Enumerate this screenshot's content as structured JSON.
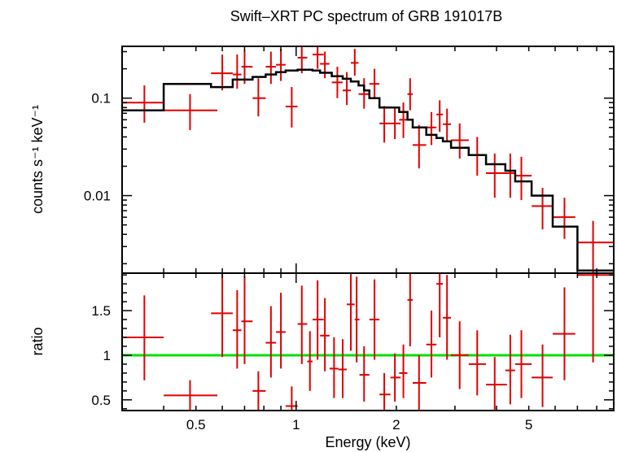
{
  "chart_data": {
    "title": "Swift–XRT PC spectrum of GRB 191017B",
    "xlabel": "Energy (keV)",
    "type": "scatter",
    "x_scale": "log",
    "xlim": [
      0.3,
      9.0
    ],
    "x_tick_labels": [
      "0.5",
      "1",
      "2",
      "5"
    ],
    "colors": {
      "data": "#e00000",
      "model": "#000000",
      "ratio_line": "#00e000",
      "axes": "#000000"
    },
    "panels": [
      {
        "name": "spectrum",
        "ylabel": "counts s⁻¹ keV⁻¹",
        "y_scale": "log",
        "ylim": [
          0.0016,
          0.34
        ],
        "y_tick_labels": [
          "0.1",
          "0.01"
        ],
        "data": [
          {
            "x": 0.35,
            "xlo": 0.3,
            "xhi": 0.4,
            "y": 0.09,
            "ylo": 0.056,
            "yhi": 0.135
          },
          {
            "x": 0.48,
            "xlo": 0.4,
            "xhi": 0.58,
            "y": 0.075,
            "ylo": 0.047,
            "yhi": 0.11
          },
          {
            "x": 0.6,
            "xlo": 0.555,
            "xhi": 0.645,
            "y": 0.18,
            "ylo": 0.12,
            "yhi": 0.28
          },
          {
            "x": 0.665,
            "xlo": 0.645,
            "xhi": 0.685,
            "y": 0.175,
            "ylo": 0.125,
            "yhi": 0.28
          },
          {
            "x": 0.7,
            "xlo": 0.685,
            "xhi": 0.74,
            "y": 0.21,
            "ylo": 0.14,
            "yhi": 0.31
          },
          {
            "x": 0.77,
            "xlo": 0.74,
            "xhi": 0.81,
            "y": 0.1,
            "ylo": 0.065,
            "yhi": 0.16
          },
          {
            "x": 0.84,
            "xlo": 0.81,
            "xhi": 0.87,
            "y": 0.21,
            "ylo": 0.14,
            "yhi": 0.3
          },
          {
            "x": 0.9,
            "xlo": 0.87,
            "xhi": 0.93,
            "y": 0.22,
            "ylo": 0.15,
            "yhi": 0.32
          },
          {
            "x": 0.97,
            "xlo": 0.93,
            "xhi": 1.01,
            "y": 0.082,
            "ylo": 0.05,
            "yhi": 0.13
          },
          {
            "x": 1.04,
            "xlo": 1.01,
            "xhi": 1.08,
            "y": 0.26,
            "ylo": 0.18,
            "yhi": 0.34
          },
          {
            "x": 1.16,
            "xlo": 1.12,
            "xhi": 1.21,
            "y": 0.28,
            "ylo": 0.2,
            "yhi": 0.34
          },
          {
            "x": 1.22,
            "xlo": 1.18,
            "xhi": 1.26,
            "y": 0.225,
            "ylo": 0.16,
            "yhi": 0.3
          },
          {
            "x": 1.33,
            "xlo": 1.28,
            "xhi": 1.38,
            "y": 0.145,
            "ylo": 0.1,
            "yhi": 0.21
          },
          {
            "x": 1.42,
            "xlo": 1.38,
            "xhi": 1.46,
            "y": 0.12,
            "ylo": 0.085,
            "yhi": 0.185
          },
          {
            "x": 1.5,
            "xlo": 1.46,
            "xhi": 1.54,
            "y": 0.23,
            "ylo": 0.17,
            "yhi": 0.32
          },
          {
            "x": 1.6,
            "xlo": 1.54,
            "xhi": 1.66,
            "y": 0.11,
            "ylo": 0.078,
            "yhi": 0.16
          },
          {
            "x": 1.72,
            "xlo": 1.66,
            "xhi": 1.78,
            "y": 0.14,
            "ylo": 0.098,
            "yhi": 0.2
          },
          {
            "x": 1.84,
            "xlo": 1.78,
            "xhi": 1.92,
            "y": 0.055,
            "ylo": 0.035,
            "yhi": 0.083
          },
          {
            "x": 1.98,
            "xlo": 1.92,
            "xhi": 2.06,
            "y": 0.055,
            "ylo": 0.038,
            "yhi": 0.082
          },
          {
            "x": 2.1,
            "xlo": 2.04,
            "xhi": 2.16,
            "y": 0.06,
            "ylo": 0.039,
            "yhi": 0.09
          },
          {
            "x": 2.2,
            "xlo": 2.16,
            "xhi": 2.24,
            "y": 0.11,
            "ylo": 0.075,
            "yhi": 0.16
          },
          {
            "x": 2.34,
            "xlo": 2.24,
            "xhi": 2.46,
            "y": 0.033,
            "ylo": 0.019,
            "yhi": 0.053
          },
          {
            "x": 2.55,
            "xlo": 2.46,
            "xhi": 2.64,
            "y": 0.05,
            "ylo": 0.033,
            "yhi": 0.072
          },
          {
            "x": 2.7,
            "xlo": 2.64,
            "xhi": 2.76,
            "y": 0.068,
            "ylo": 0.045,
            "yhi": 0.095
          },
          {
            "x": 2.84,
            "xlo": 2.76,
            "xhi": 2.92,
            "y": 0.054,
            "ylo": 0.036,
            "yhi": 0.078
          },
          {
            "x": 3.1,
            "xlo": 2.92,
            "xhi": 3.3,
            "y": 0.037,
            "ylo": 0.024,
            "yhi": 0.055
          },
          {
            "x": 3.5,
            "xlo": 3.3,
            "xhi": 3.72,
            "y": 0.026,
            "ylo": 0.016,
            "yhi": 0.04
          },
          {
            "x": 3.95,
            "xlo": 3.72,
            "xhi": 4.3,
            "y": 0.017,
            "ylo": 0.0095,
            "yhi": 0.027
          },
          {
            "x": 4.4,
            "xlo": 4.25,
            "xhi": 4.55,
            "y": 0.017,
            "ylo": 0.0095,
            "yhi": 0.027
          },
          {
            "x": 4.75,
            "xlo": 4.55,
            "xhi": 5.1,
            "y": 0.016,
            "ylo": 0.009,
            "yhi": 0.025
          },
          {
            "x": 5.5,
            "xlo": 5.1,
            "xhi": 5.9,
            "y": 0.0078,
            "ylo": 0.0045,
            "yhi": 0.012
          },
          {
            "x": 6.4,
            "xlo": 5.9,
            "xhi": 6.9,
            "y": 0.006,
            "ylo": 0.0036,
            "yhi": 0.0095
          },
          {
            "x": 7.8,
            "xlo": 7.0,
            "xhi": 9.0,
            "y": 0.0033,
            "ylo": 0.0016,
            "yhi": 0.0055
          }
        ],
        "model_steps": [
          {
            "xlo": 0.3,
            "xhi": 0.4,
            "y": 0.075
          },
          {
            "xlo": 0.4,
            "xhi": 0.555,
            "y": 0.14
          },
          {
            "xlo": 0.555,
            "xhi": 0.645,
            "y": 0.13
          },
          {
            "xlo": 0.645,
            "xhi": 0.74,
            "y": 0.155
          },
          {
            "xlo": 0.74,
            "xhi": 0.81,
            "y": 0.165
          },
          {
            "xlo": 0.81,
            "xhi": 0.87,
            "y": 0.175
          },
          {
            "xlo": 0.87,
            "xhi": 0.93,
            "y": 0.185
          },
          {
            "xlo": 0.93,
            "xhi": 1.01,
            "y": 0.192
          },
          {
            "xlo": 1.01,
            "xhi": 1.12,
            "y": 0.196
          },
          {
            "xlo": 1.12,
            "xhi": 1.18,
            "y": 0.192
          },
          {
            "xlo": 1.18,
            "xhi": 1.28,
            "y": 0.182
          },
          {
            "xlo": 1.28,
            "xhi": 1.38,
            "y": 0.168
          },
          {
            "xlo": 1.38,
            "xhi": 1.46,
            "y": 0.158
          },
          {
            "xlo": 1.46,
            "xhi": 1.54,
            "y": 0.148
          },
          {
            "xlo": 1.54,
            "xhi": 1.6,
            "y": 0.135
          },
          {
            "xlo": 1.6,
            "xhi": 1.66,
            "y": 0.12
          },
          {
            "xlo": 1.66,
            "xhi": 1.78,
            "y": 0.1
          },
          {
            "xlo": 1.78,
            "xhi": 2.04,
            "y": 0.08
          },
          {
            "xlo": 2.04,
            "xhi": 2.16,
            "y": 0.072
          },
          {
            "xlo": 2.16,
            "xhi": 2.24,
            "y": 0.06
          },
          {
            "xlo": 2.24,
            "xhi": 2.46,
            "y": 0.05
          },
          {
            "xlo": 2.46,
            "xhi": 2.64,
            "y": 0.042
          },
          {
            "xlo": 2.64,
            "xhi": 2.76,
            "y": 0.039
          },
          {
            "xlo": 2.76,
            "xhi": 2.92,
            "y": 0.036
          },
          {
            "xlo": 2.92,
            "xhi": 3.3,
            "y": 0.031
          },
          {
            "xlo": 3.3,
            "xhi": 3.72,
            "y": 0.026
          },
          {
            "xlo": 3.72,
            "xhi": 4.25,
            "y": 0.021
          },
          {
            "xlo": 4.25,
            "xhi": 4.55,
            "y": 0.018
          },
          {
            "xlo": 4.55,
            "xhi": 5.1,
            "y": 0.014
          },
          {
            "xlo": 5.1,
            "xhi": 5.9,
            "y": 0.01
          },
          {
            "xlo": 5.9,
            "xhi": 7.0,
            "y": 0.0048
          },
          {
            "xlo": 7.0,
            "xhi": 9.0,
            "y": 0.0017
          }
        ]
      },
      {
        "name": "ratio",
        "ylabel": "ratio",
        "y_scale": "linear",
        "ylim": [
          0.38,
          1.92
        ],
        "y_tick_labels": [
          "0.5",
          "1",
          "1.5"
        ],
        "reference_line": 1.0,
        "data": [
          {
            "x": 0.35,
            "xlo": 0.3,
            "xhi": 0.4,
            "y": 1.2,
            "ylo": 0.72,
            "yhi": 1.67
          },
          {
            "x": 0.48,
            "xlo": 0.4,
            "xhi": 0.58,
            "y": 0.55,
            "ylo": 0.38,
            "yhi": 0.72
          },
          {
            "x": 0.6,
            "xlo": 0.555,
            "xhi": 0.645,
            "y": 1.47,
            "ylo": 0.98,
            "yhi": 1.92
          },
          {
            "x": 0.665,
            "xlo": 0.645,
            "xhi": 0.685,
            "y": 1.28,
            "ylo": 0.85,
            "yhi": 1.73
          },
          {
            "x": 0.7,
            "xlo": 0.685,
            "xhi": 0.74,
            "y": 1.38,
            "ylo": 0.9,
            "yhi": 1.88
          },
          {
            "x": 0.77,
            "xlo": 0.74,
            "xhi": 0.81,
            "y": 0.6,
            "ylo": 0.38,
            "yhi": 0.82
          },
          {
            "x": 0.84,
            "xlo": 0.81,
            "xhi": 0.87,
            "y": 1.14,
            "ylo": 0.75,
            "yhi": 1.55
          },
          {
            "x": 0.9,
            "xlo": 0.87,
            "xhi": 0.93,
            "y": 1.26,
            "ylo": 0.85,
            "yhi": 1.7
          },
          {
            "x": 0.97,
            "xlo": 0.93,
            "xhi": 1.01,
            "y": 0.43,
            "ylo": 0.38,
            "yhi": 0.65
          },
          {
            "x": 1.04,
            "xlo": 1.01,
            "xhi": 1.08,
            "y": 1.35,
            "ylo": 0.9,
            "yhi": 1.78
          },
          {
            "x": 1.1,
            "xlo": 1.08,
            "xhi": 1.12,
            "y": 0.93,
            "ylo": 0.6,
            "yhi": 1.27
          },
          {
            "x": 1.16,
            "xlo": 1.12,
            "xhi": 1.21,
            "y": 1.4,
            "ylo": 0.95,
            "yhi": 1.84
          },
          {
            "x": 1.22,
            "xlo": 1.18,
            "xhi": 1.26,
            "y": 1.22,
            "ylo": 0.82,
            "yhi": 1.64
          },
          {
            "x": 1.3,
            "xlo": 1.26,
            "xhi": 1.34,
            "y": 0.85,
            "ylo": 0.52,
            "yhi": 1.2
          },
          {
            "x": 1.38,
            "xlo": 1.34,
            "xhi": 1.42,
            "y": 0.84,
            "ylo": 0.52,
            "yhi": 1.18
          },
          {
            "x": 1.46,
            "xlo": 1.42,
            "xhi": 1.5,
            "y": 1.57,
            "ylo": 1.05,
            "yhi": 1.92
          },
          {
            "x": 1.52,
            "xlo": 1.5,
            "xhi": 1.55,
            "y": 1.4,
            "ylo": 0.92,
            "yhi": 1.88
          },
          {
            "x": 1.6,
            "xlo": 1.55,
            "xhi": 1.66,
            "y": 0.78,
            "ylo": 0.48,
            "yhi": 1.1
          },
          {
            "x": 1.72,
            "xlo": 1.66,
            "xhi": 1.78,
            "y": 1.4,
            "ylo": 0.95,
            "yhi": 1.85
          },
          {
            "x": 1.84,
            "xlo": 1.78,
            "xhi": 1.92,
            "y": 0.56,
            "ylo": 0.38,
            "yhi": 0.8
          },
          {
            "x": 1.98,
            "xlo": 1.92,
            "xhi": 2.06,
            "y": 0.75,
            "ylo": 0.48,
            "yhi": 1.02
          },
          {
            "x": 2.1,
            "xlo": 2.04,
            "xhi": 2.16,
            "y": 0.8,
            "ylo": 0.52,
            "yhi": 1.12
          },
          {
            "x": 2.2,
            "xlo": 2.16,
            "xhi": 2.24,
            "y": 1.62,
            "ylo": 1.1,
            "yhi": 1.92
          },
          {
            "x": 2.34,
            "xlo": 2.24,
            "xhi": 2.46,
            "y": 0.69,
            "ylo": 0.38,
            "yhi": 1.0
          },
          {
            "x": 2.55,
            "xlo": 2.46,
            "xhi": 2.64,
            "y": 1.12,
            "ylo": 0.75,
            "yhi": 1.5
          },
          {
            "x": 2.7,
            "xlo": 2.64,
            "xhi": 2.76,
            "y": 1.8,
            "ylo": 1.2,
            "yhi": 1.92
          },
          {
            "x": 2.84,
            "xlo": 2.76,
            "xhi": 2.92,
            "y": 1.42,
            "ylo": 0.95,
            "yhi": 1.9
          },
          {
            "x": 3.1,
            "xlo": 2.92,
            "xhi": 3.3,
            "y": 1.0,
            "ylo": 0.62,
            "yhi": 1.38
          },
          {
            "x": 3.5,
            "xlo": 3.3,
            "xhi": 3.72,
            "y": 0.9,
            "ylo": 0.55,
            "yhi": 1.28
          },
          {
            "x": 3.95,
            "xlo": 3.72,
            "xhi": 4.3,
            "y": 0.67,
            "ylo": 0.38,
            "yhi": 0.98
          },
          {
            "x": 4.4,
            "xlo": 4.25,
            "xhi": 4.55,
            "y": 0.83,
            "ylo": 0.45,
            "yhi": 1.23
          },
          {
            "x": 4.75,
            "xlo": 4.55,
            "xhi": 5.1,
            "y": 0.9,
            "ylo": 0.52,
            "yhi": 1.28
          },
          {
            "x": 5.5,
            "xlo": 5.1,
            "xhi": 5.9,
            "y": 0.75,
            "ylo": 0.42,
            "yhi": 1.12
          },
          {
            "x": 6.4,
            "xlo": 5.9,
            "xhi": 6.9,
            "y": 1.24,
            "ylo": 0.72,
            "yhi": 1.76
          },
          {
            "x": 7.8,
            "xlo": 7.0,
            "xhi": 9.0,
            "y": 1.9,
            "ylo": 0.92,
            "yhi": 1.92
          }
        ]
      }
    ]
  }
}
